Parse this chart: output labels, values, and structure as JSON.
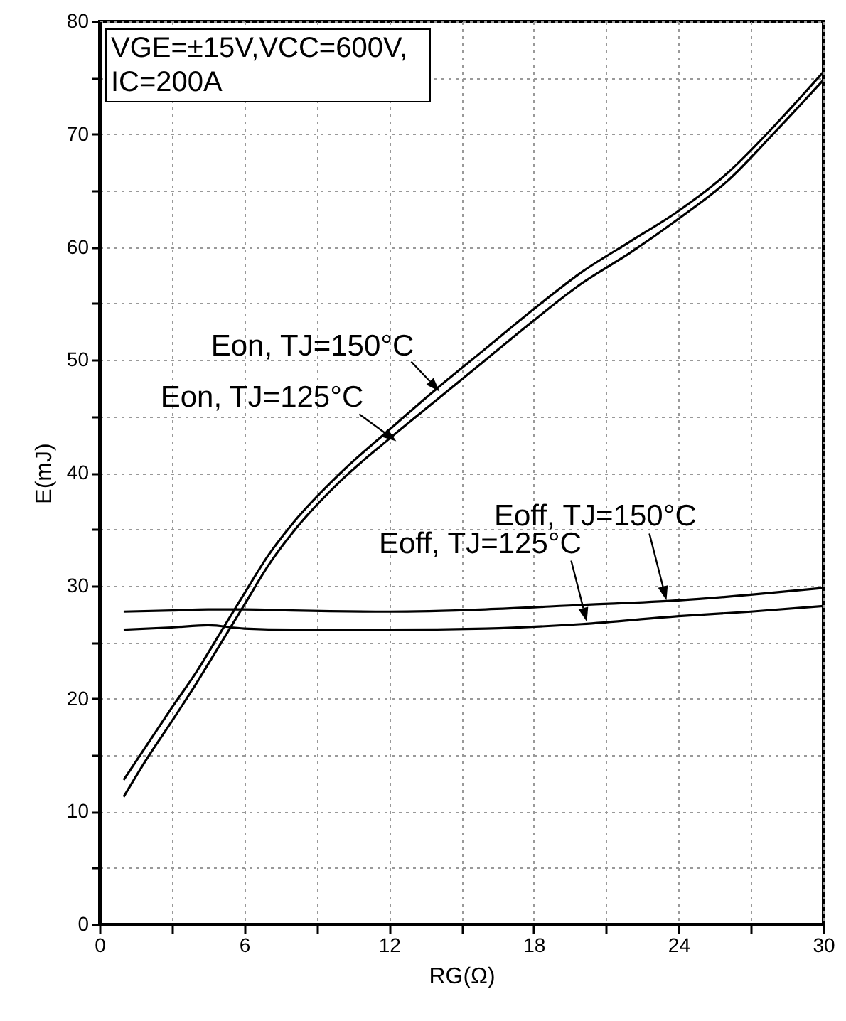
{
  "chart_data": {
    "type": "line",
    "xlabel": "RG(Ω)",
    "ylabel": "E(mJ)",
    "xlim": [
      0,
      30
    ],
    "xticks": [
      0,
      {
        "value": 3,
        "label": null
      },
      6,
      {
        "value": 9,
        "label": null
      },
      12,
      {
        "value": 15,
        "label": null
      },
      18,
      {
        "value": 21,
        "label": null
      },
      24,
      {
        "value": 27,
        "label": null
      },
      30
    ],
    "ylim": [
      0,
      80
    ],
    "yticks": [
      0,
      {
        "value": 5,
        "label": null
      },
      10,
      {
        "value": 15,
        "label": null
      },
      20,
      {
        "value": 25,
        "label": null
      },
      30,
      {
        "value": 35,
        "label": null
      },
      40,
      {
        "value": 45,
        "label": null
      },
      50,
      {
        "value": 55,
        "label": null
      },
      60,
      {
        "value": 65,
        "label": null
      },
      70,
      {
        "value": 75,
        "label": null
      },
      80
    ],
    "grid": true,
    "line_style": "solid",
    "series": [
      {
        "color": "#000000",
        "x": [
          1,
          2,
          3,
          4,
          5,
          6,
          7,
          8,
          10,
          12,
          14,
          16,
          18,
          20,
          22,
          24,
          26,
          28,
          30
        ],
        "values": [
          12.8,
          16,
          19.2,
          22.3,
          25.8,
          29.3,
          32.7,
          35.5,
          40,
          43.8,
          47.5,
          51,
          54.5,
          57.8,
          60.5,
          63.2,
          66.5,
          70.8,
          75.5
        ]
      },
      {
        "color": "#000000",
        "x": [
          1,
          2,
          3,
          4,
          5,
          6,
          7,
          8,
          10,
          12,
          14,
          16,
          18,
          20,
          22,
          24,
          26,
          28,
          30
        ],
        "values": [
          11.3,
          14.8,
          18,
          21.3,
          24.8,
          28.3,
          31.8,
          34.7,
          39.3,
          43,
          46.5,
          50,
          53.5,
          56.8,
          59.5,
          62.5,
          65.8,
          70.2,
          74.8
        ]
      },
      {
        "color": "#000000",
        "x": [
          1,
          3,
          4.5,
          6,
          8,
          12,
          16,
          20,
          24,
          27,
          30
        ],
        "values": [
          27.7,
          27.8,
          27.9,
          27.9,
          27.8,
          27.7,
          27.9,
          28.3,
          28.7,
          29.2,
          29.8
        ]
      },
      {
        "color": "#000000",
        "x": [
          1,
          3,
          4.5,
          6,
          8,
          12,
          16,
          20,
          24,
          27,
          30
        ],
        "values": [
          26.1,
          26.3,
          26.5,
          26.2,
          26.1,
          26.1,
          26.2,
          26.6,
          27.3,
          27.7,
          28.2
        ]
      }
    ],
    "annotations": [
      "VGE=±15V,VCC=600V, IC=200A",
      {
        "text": "Eon, TJ=150°C",
        "x": 14.1,
        "y": 47.2
      },
      {
        "text": "Eon, TJ=125°C",
        "x": 12.3,
        "y": 42.8
      },
      {
        "text": "Eoff, TJ=150°C",
        "x": 23.5,
        "y": 28.7
      },
      {
        "text": "Eoff, TJ=125°C",
        "x": 20.2,
        "y": 26.8
      }
    ]
  }
}
